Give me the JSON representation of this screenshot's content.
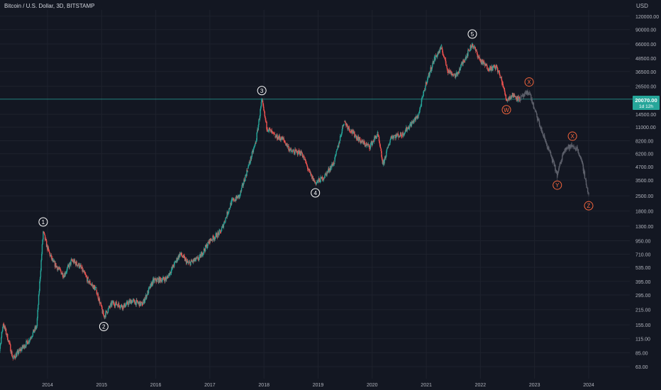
{
  "header": {
    "title": "Bitcoin / U.S. Dollar, 3D, BITSTAMP",
    "currency": "USD"
  },
  "price_tag": {
    "price": "20070.00",
    "countdown": "1d 12h",
    "color": "#26a69a"
  },
  "colors": {
    "background": "#131722",
    "up": "#26a69a",
    "down": "#ef5350",
    "projection": "#5d606b",
    "wave_main": "#ffffff",
    "wave_corrective": "#f7663c",
    "axis_text": "#b2b5be"
  },
  "chart_data": {
    "type": "candlestick",
    "scale": "log",
    "x_ticks": [
      "2014",
      "2015",
      "2016",
      "2017",
      "2018",
      "2019",
      "2020",
      "2021",
      "2022",
      "2023",
      "2024"
    ],
    "y_ticks": [
      "120000.00",
      "90000.00",
      "66000.00",
      "48500.00",
      "36500.00",
      "26500.00",
      "14500.00",
      "11000.00",
      "8200.00",
      "6200.00",
      "4700.00",
      "3500.00",
      "2500.00",
      "1800.00",
      "1300.00",
      "950.00",
      "710.00",
      "535.00",
      "395.00",
      "295.00",
      "215.00",
      "155.00",
      "115.00",
      "85.00",
      "63.00"
    ],
    "ylim": [
      50,
      150000
    ],
    "xlim": [
      2013.0,
      2024.3
    ],
    "series": [
      {
        "kind": "price",
        "points": [
          [
            2013.0,
            55
          ],
          [
            2013.1,
            80
          ],
          [
            2013.18,
            160
          ],
          [
            2013.28,
            110
          ],
          [
            2013.36,
            75
          ],
          [
            2013.5,
            90
          ],
          [
            2013.65,
            110
          ],
          [
            2013.8,
            150
          ],
          [
            2013.92,
            1150
          ],
          [
            2014.0,
            800
          ],
          [
            2014.1,
            600
          ],
          [
            2014.3,
            450
          ],
          [
            2014.45,
            620
          ],
          [
            2014.6,
            550
          ],
          [
            2014.75,
            400
          ],
          [
            2014.9,
            330
          ],
          [
            2015.04,
            185
          ],
          [
            2015.2,
            250
          ],
          [
            2015.4,
            230
          ],
          [
            2015.55,
            260
          ],
          [
            2015.75,
            240
          ],
          [
            2015.95,
            400
          ],
          [
            2016.2,
            420
          ],
          [
            2016.45,
            720
          ],
          [
            2016.6,
            580
          ],
          [
            2016.8,
            650
          ],
          [
            2017.0,
            950
          ],
          [
            2017.2,
            1150
          ],
          [
            2017.4,
            2200
          ],
          [
            2017.55,
            2500
          ],
          [
            2017.7,
            4500
          ],
          [
            2017.85,
            8000
          ],
          [
            2017.96,
            19500
          ],
          [
            2018.05,
            11000
          ],
          [
            2018.2,
            9000
          ],
          [
            2018.35,
            8500
          ],
          [
            2018.5,
            6500
          ],
          [
            2018.7,
            6300
          ],
          [
            2018.85,
            4000
          ],
          [
            2018.95,
            3300
          ],
          [
            2019.1,
            3700
          ],
          [
            2019.3,
            5200
          ],
          [
            2019.48,
            12500
          ],
          [
            2019.6,
            10200
          ],
          [
            2019.8,
            8000
          ],
          [
            2019.95,
            7200
          ],
          [
            2020.1,
            9500
          ],
          [
            2020.2,
            4900
          ],
          [
            2020.35,
            9000
          ],
          [
            2020.55,
            9300
          ],
          [
            2020.7,
            11500
          ],
          [
            2020.85,
            14000
          ],
          [
            2021.0,
            29000
          ],
          [
            2021.15,
            48000
          ],
          [
            2021.28,
            61000
          ],
          [
            2021.4,
            37000
          ],
          [
            2021.55,
            33000
          ],
          [
            2021.7,
            47000
          ],
          [
            2021.85,
            66000
          ],
          [
            2022.0,
            46000
          ],
          [
            2022.15,
            39000
          ],
          [
            2022.3,
            40000
          ],
          [
            2022.4,
            29000
          ],
          [
            2022.48,
            19800
          ],
          [
            2022.6,
            22000
          ],
          [
            2022.72,
            20070
          ]
        ]
      },
      {
        "kind": "projection",
        "points": [
          [
            2022.72,
            20070
          ],
          [
            2022.9,
            23500
          ],
          [
            2023.0,
            16000
          ],
          [
            2023.15,
            9500
          ],
          [
            2023.3,
            6000
          ],
          [
            2023.42,
            3900
          ],
          [
            2023.55,
            6900
          ],
          [
            2023.7,
            7300
          ],
          [
            2023.8,
            6800
          ],
          [
            2023.9,
            4500
          ],
          [
            2024.0,
            2500
          ]
        ]
      }
    ],
    "annotations": [
      {
        "label": "1",
        "x": 2013.92,
        "y": 1150,
        "pos": "above",
        "style": "main"
      },
      {
        "label": "2",
        "x": 2015.04,
        "y": 185,
        "pos": "below",
        "style": "main"
      },
      {
        "label": "3",
        "x": 2017.96,
        "y": 19500,
        "pos": "above",
        "style": "main"
      },
      {
        "label": "4",
        "x": 2018.95,
        "y": 3300,
        "pos": "below",
        "style": "main"
      },
      {
        "label": "5",
        "x": 2021.85,
        "y": 66000,
        "pos": "above",
        "style": "main"
      },
      {
        "label": "W",
        "x": 2022.48,
        "y": 19800,
        "pos": "below",
        "style": "corrective"
      },
      {
        "label": "X",
        "x": 2022.9,
        "y": 23500,
        "pos": "above",
        "style": "corrective"
      },
      {
        "label": "Y",
        "x": 2023.42,
        "y": 3900,
        "pos": "below",
        "style": "corrective"
      },
      {
        "label": "X",
        "x": 2023.7,
        "y": 7300,
        "pos": "above",
        "style": "corrective"
      },
      {
        "label": "Z",
        "x": 2024.0,
        "y": 2500,
        "pos": "below",
        "style": "corrective"
      }
    ],
    "current_price_line": 20070
  }
}
